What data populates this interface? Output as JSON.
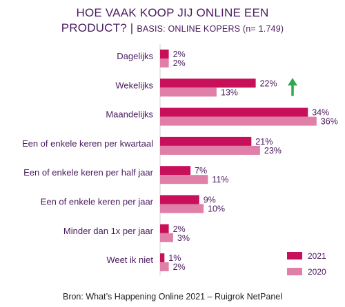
{
  "header": {
    "title_line1": "HOE VAAK KOOP JIJ ONLINE EEN",
    "title_line2": "PRODUCT? |",
    "subtitle": "BASIS: ONLINE KOPERS (n= 1.749)"
  },
  "chart_data": {
    "type": "bar",
    "orientation": "horizontal",
    "title": "HOE VAAK KOOP JIJ ONLINE EEN PRODUCT?",
    "subtitle": "BASIS: ONLINE KOPERS (n= 1.749)",
    "categories": [
      "Dagelijks",
      "Wekelijks",
      "Maandelijks",
      "Een of enkele keren per kwartaal",
      "Een of enkele keren per half jaar",
      "Een of enkele keren per jaar",
      "Minder dan 1x per jaar",
      "Weet ik niet"
    ],
    "series": [
      {
        "name": "2021",
        "values": [
          2,
          22,
          34,
          21,
          7,
          9,
          2,
          1
        ],
        "labels": [
          "2%",
          "22%",
          "34%",
          "21%",
          "7%",
          "9%",
          "2%",
          "1%"
        ],
        "color": "#c8105a"
      },
      {
        "name": "2020",
        "values": [
          2,
          13,
          36,
          23,
          11,
          10,
          3,
          2
        ],
        "labels": [
          "2%",
          "13%",
          "36%",
          "23%",
          "11%",
          "10%",
          "3%",
          "2%"
        ],
        "color": "#e07fa8"
      }
    ],
    "annotations": [
      {
        "category": "Wekelijks",
        "type": "arrow-up",
        "color": "#2ea84a"
      }
    ],
    "xlim": [
      0,
      36
    ],
    "grid": false,
    "legend": "bottom-right"
  },
  "source": "Bron: What’s Happening Online 2021 – Ruigrok NetPanel"
}
